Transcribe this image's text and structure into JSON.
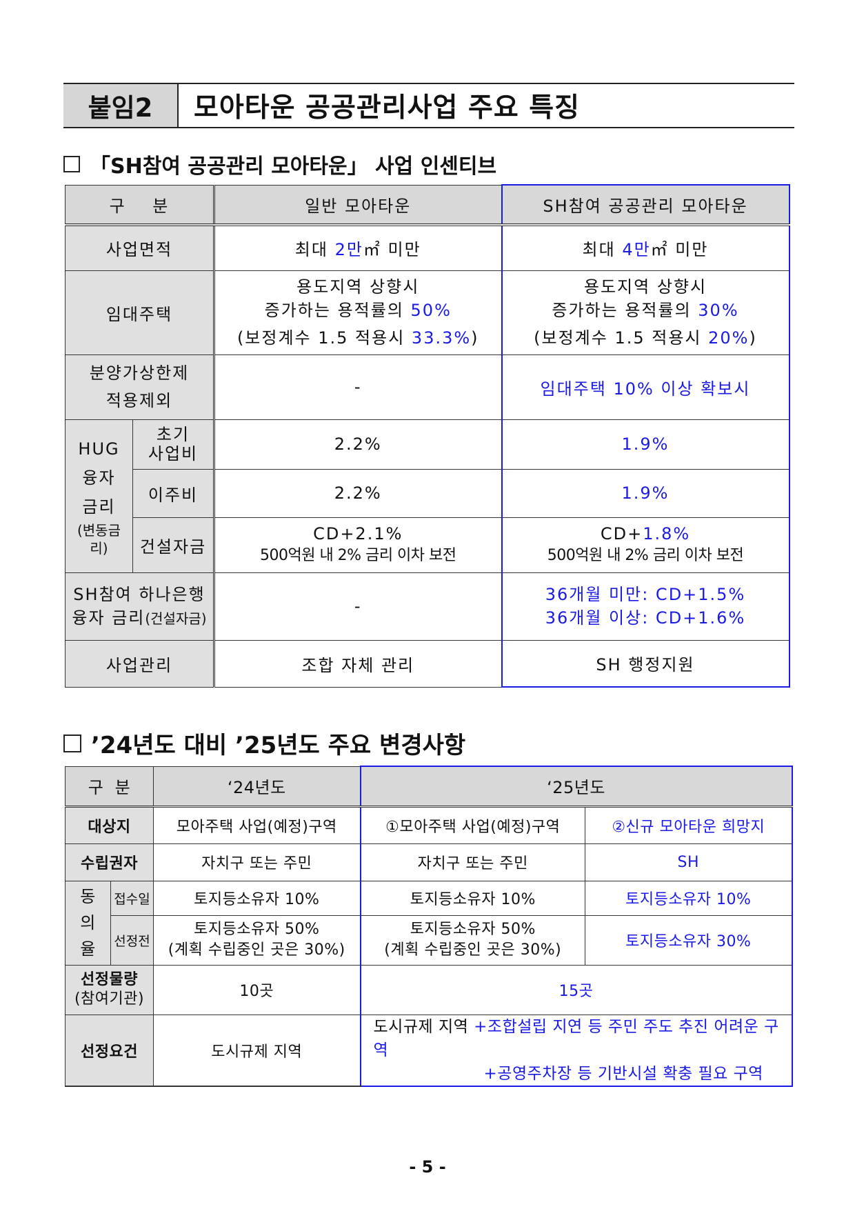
{
  "title": {
    "tag": "붙임2",
    "text": "모아타운 공공관리사업 주요 특징"
  },
  "section1": {
    "heading": "「SH참여 공공관리 모아타운」 사업 인센티브",
    "header": {
      "col1": "구    분",
      "col2": "일반 모아타운",
      "col3": "SH참여 공공관리 모아타운"
    },
    "area": {
      "label": "사업면적",
      "gen_pre": "최대 ",
      "gen_hl": "2만",
      "gen_post": "㎡ 미만",
      "sh_pre": "최대 ",
      "sh_hl": "4만",
      "sh_post": "㎡ 미만"
    },
    "rental": {
      "label": "임대주택",
      "gen_l1": "용도지역 상향시",
      "gen_l2_pre": "증가하는 용적률의 ",
      "gen_l2_hl": "50%",
      "gen_l3_pre": "(보정계수 1.5 적용시 ",
      "gen_l3_hl": "33.3%",
      "gen_l3_post": ")",
      "sh_l1": "용도지역 상향시",
      "sh_l2_pre": "증가하는 용적률의 ",
      "sh_l2_hl": "30%",
      "sh_l3_pre": "(보정계수 1.5 적용시 ",
      "sh_l3_hl": "20%",
      "sh_l3_post": ")"
    },
    "price_cap": {
      "label_l1": "분양가상한제",
      "label_l2": "적용제외",
      "gen": "-",
      "sh": "임대주택 10% 이상 확보시"
    },
    "hug": {
      "label_l1": "HUG",
      "label_l2": "융자",
      "label_l3": "금리",
      "label_sub": "(변동금리)",
      "initial": {
        "label_l1": "초기",
        "label_l2": "사업비",
        "gen": "2.2%",
        "sh": "1.9%"
      },
      "relocation": {
        "label": "이주비",
        "gen": "2.2%",
        "sh": "1.9%"
      },
      "construction": {
        "label": "건설자금",
        "gen_l1": "CD+2.1%",
        "gen_l2": "500억원 내 2% 금리 이차 보전",
        "sh_l1_pre": "CD+",
        "sh_l1_hl": "1.8%",
        "sh_l2": "500억원 내 2% 금리 이차 보전"
      }
    },
    "hana": {
      "label_l1": "SH참여 하나은행",
      "label_l2": "융자 금리",
      "label_sub": "(건설자금)",
      "gen": "-",
      "sh_l1": "36개월 미만: CD+1.5%",
      "sh_l2": "36개월 이상: CD+1.6%"
    },
    "mgmt": {
      "label": "사업관리",
      "gen": "조합 자체 관리",
      "sh": "SH 행정지원"
    }
  },
  "section2": {
    "heading": "’24년도 대비 ’25년도 주요 변경사항",
    "header": {
      "col1": "구  분",
      "col2": "‘24년도",
      "col3": "‘25년도"
    },
    "target": {
      "label": "대상지",
      "y24": "모아주택 사업(예정)구역",
      "y25a": "①모아주택 사업(예정)구역",
      "y25b": "②신규 모아타운 희망지"
    },
    "planner": {
      "label": "수립권자",
      "y24": "자치구 또는 주민",
      "y25a": "자치구 또는 주민",
      "y25b": "SH"
    },
    "consent": {
      "label_l1": "동",
      "label_l2": "의",
      "label_l3": "율",
      "submit": {
        "label": "접수일",
        "y24": "토지등소유자 10%",
        "y25a": "토지등소유자 10%",
        "y25b": "토지등소유자 10%"
      },
      "pre_select": {
        "label": "선정전",
        "y24_l1": "토지등소유자 50%",
        "y24_l2": "(계획 수립중인 곳은 30%)",
        "y25a_l1": "토지등소유자 50%",
        "y25a_l2": "(계획 수립중인 곳은 30%)",
        "y25b": "토지등소유자 30%"
      }
    },
    "volume": {
      "label_l1": "선정물량",
      "label_l2": "(참여기관)",
      "y24": "10곳",
      "y25": "15곳"
    },
    "criteria": {
      "label": "선정요건",
      "y24": "도시규제 지역",
      "y25_pre": "도시규제 지역 ",
      "y25_l1": "+조합설립 지연 등 주민 주도 추진 어려운 구역",
      "y25_l2": "+공영주차장 등 기반시설 확충 필요 구역"
    }
  },
  "page_number": "- 5 -",
  "colors": {
    "accent_blue": "#1a1ae6",
    "header_gray": "#d8d8d8"
  }
}
